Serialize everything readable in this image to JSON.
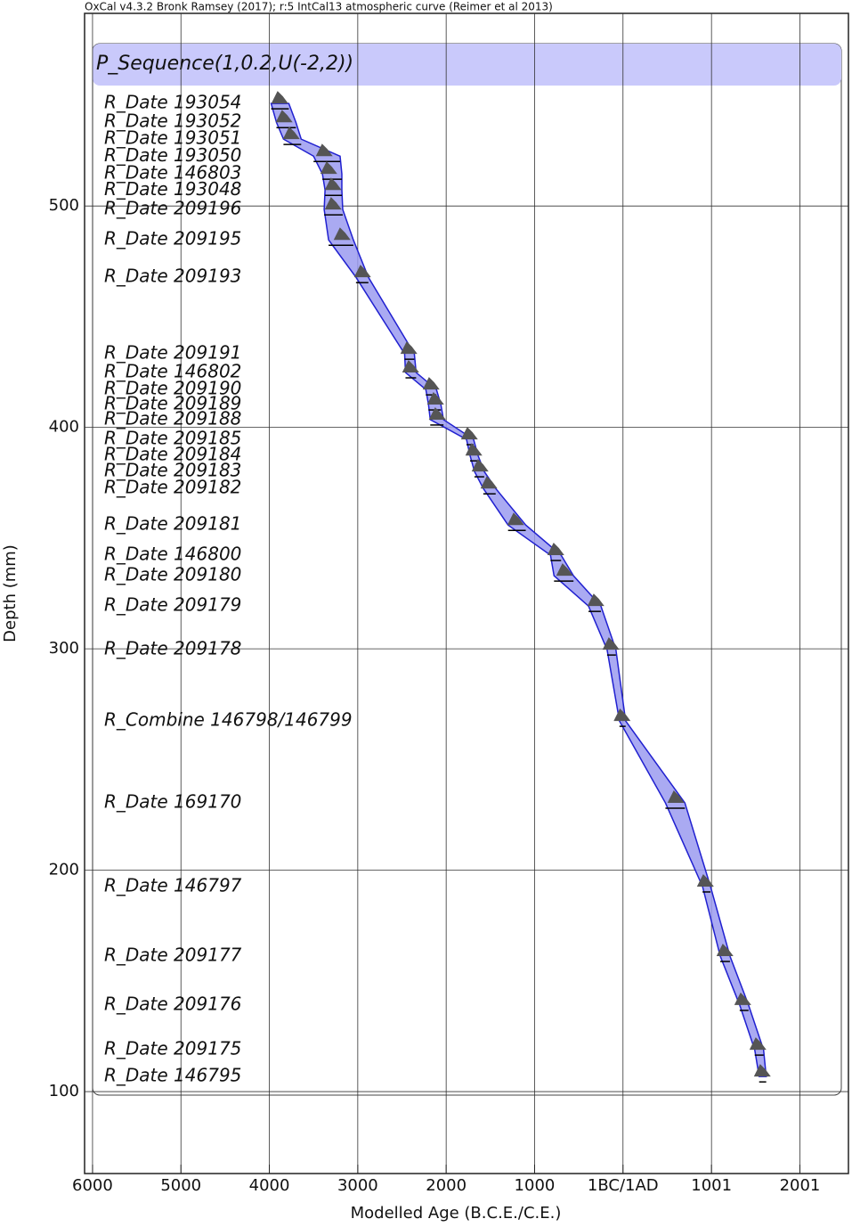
{
  "chart_data": {
    "type": "sequence",
    "title": "OxCal v4.3.2 Bronk Ramsey (2017); r:5 IntCal13 atmospheric curve (Reimer et al 2013)",
    "sequence_label": "P_Sequence(1,0.2,U(-2,2))",
    "x_label": "Modelled Age (B.C.E./C.E.)",
    "y_label": "Depth (mm)",
    "xlim": [
      -6090,
      2550
    ],
    "ylim": [
      63,
      587
    ],
    "xticks": [
      {
        "value": -6000,
        "label": "6000"
      },
      {
        "value": -5000,
        "label": "5000"
      },
      {
        "value": -4000,
        "label": "4000"
      },
      {
        "value": -3000,
        "label": "3000"
      },
      {
        "value": -2000,
        "label": "2000"
      },
      {
        "value": -1000,
        "label": "1000"
      },
      {
        "value": 0,
        "label": "1BC/1AD"
      },
      1001,
      2001
    ],
    "yticks": [
      100,
      200,
      300,
      400,
      500
    ],
    "grid": true,
    "color": "#2020d0",
    "fill": "#9b9bf0",
    "labels": [
      "R_Date 193054",
      "R_Date 193052",
      "R_Date 193051",
      "R_Date 193050",
      "R_Date 146803",
      "R_Date 193048",
      "R_Date 209196",
      "R_Date 209195",
      "R_Date 209193",
      "R_Date 209191",
      "R_Date 146802",
      "R_Date 209190",
      "R_Date 209189",
      "R_Date 209188",
      "R_Date 209185",
      "R_Date 209184",
      "R_Date 209183",
      "R_Date 209182",
      "R_Date 209181",
      "R_Date 146800",
      "R_Date 209180",
      "R_Date 209179",
      "R_Date 209178",
      "R_Combine 146798/146799",
      "R_Date 169170",
      "R_Date 146797",
      "R_Date 209177",
      "R_Date 209176",
      "R_Date 209175",
      "R_Date 146795"
    ],
    "depth": [
      546.3,
      537.8,
      530.2,
      522.5,
      514.5,
      507.2,
      498.4,
      484.7,
      467.8,
      433.2,
      424.8,
      417.1,
      410.3,
      403.5,
      394.6,
      387.3,
      380.1,
      372.4,
      355.9,
      342.3,
      333.0,
      319.3,
      299.6,
      267.4,
      230.4,
      192.6,
      161.2,
      139.1,
      118.9,
      106.8
    ],
    "age": [
      -3877,
      -3827,
      -3746,
      -3374,
      -3323,
      -3273,
      -3273,
      -3172,
      -2941,
      -2417,
      -2397,
      -2165,
      -2115,
      -2095,
      -1732,
      -1682,
      -1611,
      -1511,
      -1208,
      -755,
      -655,
      -302,
      -131,
      -5,
      604,
      937,
      1158,
      1360,
      1531,
      1581
    ],
    "lower": [
      -3980,
      -3920,
      -3840,
      -3500,
      -3400,
      -3370,
      -3380,
      -3330,
      -3020,
      -2470,
      -2460,
      -2230,
      -2200,
      -2180,
      -1770,
      -1730,
      -1680,
      -1580,
      -1300,
      -820,
      -780,
      -390,
      -180,
      -40,
      480,
      900,
      1100,
      1320,
      1490,
      1540
    ],
    "upper": [
      -3780,
      -3700,
      -3640,
      -3200,
      -3180,
      -3180,
      -3170,
      -3050,
      -2880,
      -2360,
      -2340,
      -2110,
      -2060,
      -2030,
      -1690,
      -1640,
      -1570,
      -1440,
      -1100,
      -700,
      -560,
      -250,
      -80,
      30,
      700,
      990,
      1210,
      1420,
      1590,
      1620
    ]
  }
}
